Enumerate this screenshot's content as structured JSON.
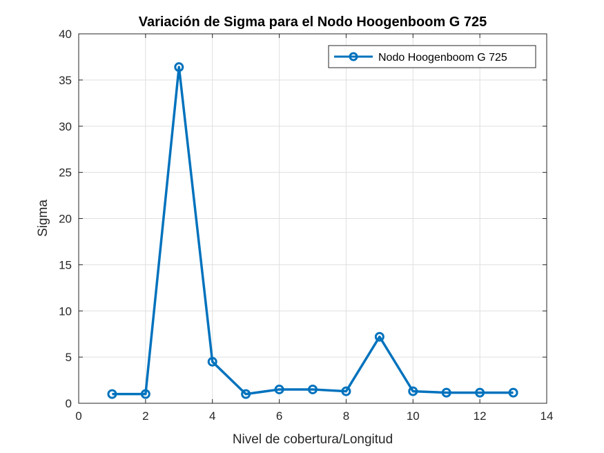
{
  "chart_data": {
    "type": "line",
    "title": "Variación de Sigma para el Nodo Hoogenboom G 725",
    "xlabel": "Nivel de cobertura/Longitud",
    "ylabel": "Sigma",
    "xlim": [
      0,
      14
    ],
    "ylim": [
      0,
      40
    ],
    "xticks": [
      0,
      2,
      4,
      6,
      8,
      10,
      12,
      14
    ],
    "yticks": [
      0,
      5,
      10,
      15,
      20,
      25,
      30,
      35,
      40
    ],
    "grid": true,
    "legend_position": "top-right",
    "series": [
      {
        "name": "Nodo Hoogenboom G 725",
        "color": "#0072BD",
        "marker": "circle",
        "x": [
          1,
          2,
          3,
          4,
          5,
          6,
          7,
          8,
          9,
          10,
          11,
          12,
          13
        ],
        "y": [
          1.0,
          1.0,
          36.4,
          4.5,
          1.0,
          1.5,
          1.5,
          1.3,
          7.2,
          1.3,
          1.15,
          1.15,
          1.15
        ]
      }
    ]
  }
}
